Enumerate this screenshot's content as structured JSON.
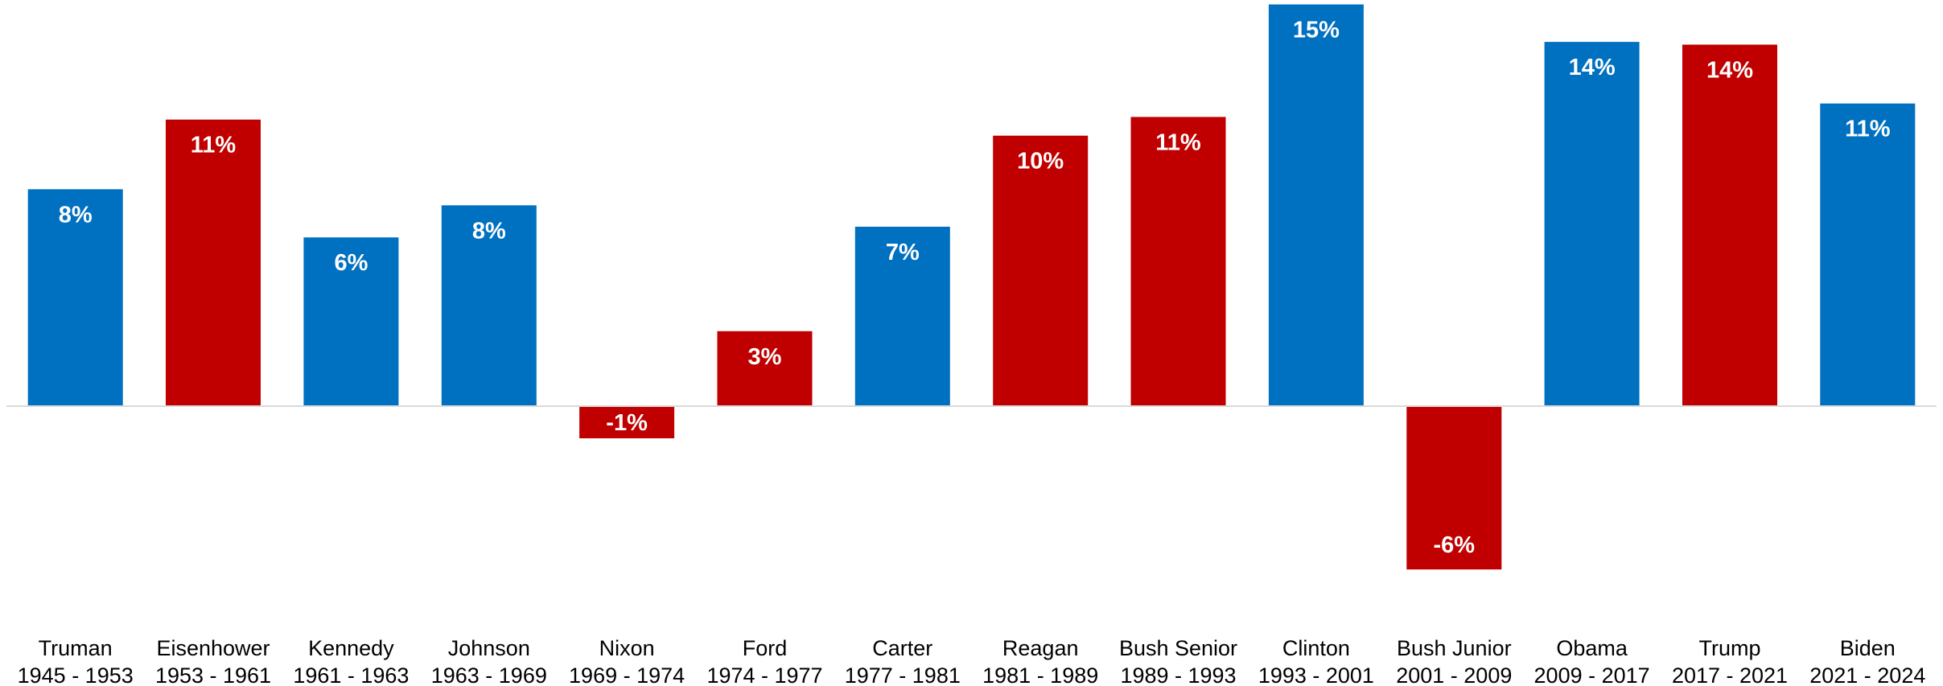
{
  "colors": {
    "democrat": "#0070C0",
    "republican": "#C00000",
    "label_text": "#FFFFFF",
    "axis_line": "#D9D9D9",
    "category_text": "#000000"
  },
  "chart_data": {
    "type": "bar",
    "title": "",
    "xlabel": "",
    "ylabel": "",
    "ylim": [
      -6,
      15
    ],
    "grid": false,
    "legend": "none",
    "value_suffix": "%",
    "categories": [
      {
        "name": "Truman",
        "years": "1945 - 1953",
        "party": "democrat"
      },
      {
        "name": "Eisenhower",
        "years": "1953 - 1961",
        "party": "republican"
      },
      {
        "name": "Kennedy",
        "years": "1961 - 1963",
        "party": "democrat"
      },
      {
        "name": "Johnson",
        "years": "1963 - 1969",
        "party": "democrat"
      },
      {
        "name": "Nixon",
        "years": "1969 - 1974",
        "party": "republican"
      },
      {
        "name": "Ford",
        "years": "1974 - 1977",
        "party": "republican"
      },
      {
        "name": "Carter",
        "years": "1977 - 1981",
        "party": "democrat"
      },
      {
        "name": "Reagan",
        "years": "1981 - 1989",
        "party": "republican"
      },
      {
        "name": "Bush Senior",
        "years": "1989 - 1993",
        "party": "republican"
      },
      {
        "name": "Clinton",
        "years": "1993 - 2001",
        "party": "democrat"
      },
      {
        "name": "Bush Junior",
        "years": "2001 - 2009",
        "party": "republican"
      },
      {
        "name": "Obama",
        "years": "2009 - 2017",
        "party": "democrat"
      },
      {
        "name": "Trump",
        "years": "2017 - 2021",
        "party": "republican"
      },
      {
        "name": "Biden",
        "years": "2021 - 2024",
        "party": "democrat"
      }
    ],
    "values": [
      8.1,
      10.7,
      6.3,
      7.5,
      -1.2,
      2.8,
      6.7,
      10.1,
      10.8,
      15.0,
      -6.1,
      13.6,
      13.5,
      11.3
    ],
    "data_labels": [
      "8%",
      "11%",
      "6%",
      "8%",
      "-1%",
      "3%",
      "7%",
      "10%",
      "11%",
      "15%",
      "-6%",
      "14%",
      "14%",
      "11%"
    ]
  }
}
